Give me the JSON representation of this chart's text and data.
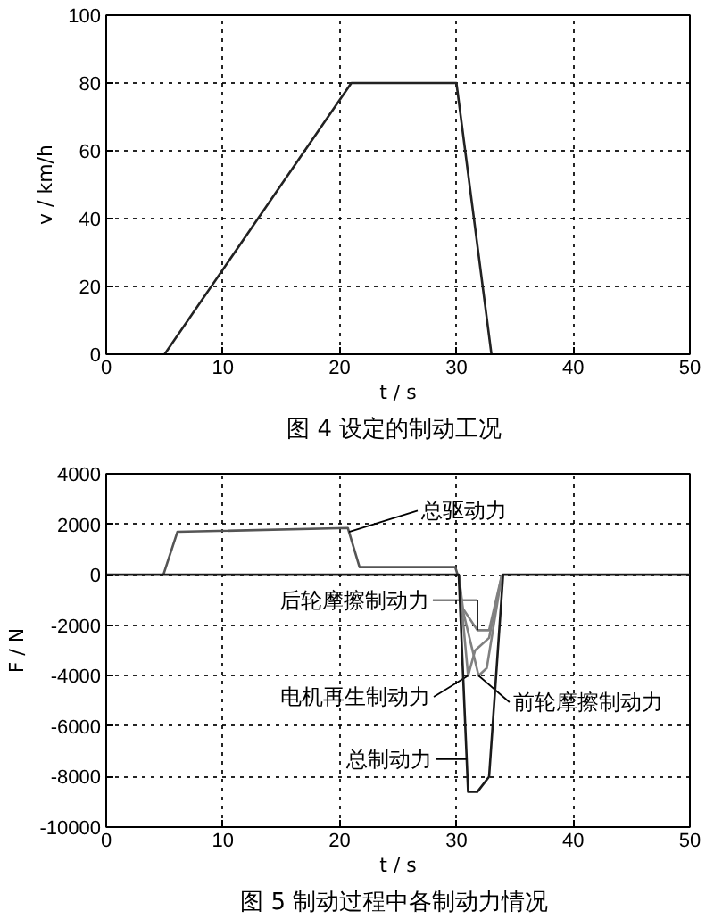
{
  "chart_data": [
    {
      "type": "line",
      "title": "图 4  设定的制动工况",
      "xlabel": "t / s",
      "ylabel": "v / km/h",
      "x": [
        5,
        21,
        30,
        33
      ],
      "values": [
        0,
        80,
        80,
        0
      ],
      "color": "#222222",
      "xlim": [
        0,
        50
      ],
      "ylim": [
        0,
        100
      ],
      "xticks": [
        0,
        10,
        20,
        30,
        40,
        50
      ],
      "yticks": [
        0,
        20,
        40,
        60,
        80,
        100
      ],
      "grid": true
    },
    {
      "type": "line",
      "title": "图 5  制动过程中各制动力情况",
      "xlabel": "t / s",
      "ylabel": "F / N",
      "xlim": [
        0,
        50
      ],
      "ylim": [
        -10000,
        4000
      ],
      "xticks": [
        0,
        10,
        20,
        30,
        40,
        50
      ],
      "yticks": [
        -10000,
        -8000,
        -6000,
        -4000,
        -2000,
        0,
        2000,
        4000
      ],
      "grid": true,
      "series": [
        {
          "name": "总驱动力",
          "color": "#555555",
          "x": [
            4.9,
            6.1,
            20.7,
            21.7,
            29.9,
            30.1
          ],
          "values": [
            0,
            1700,
            1850,
            300,
            300,
            0
          ]
        },
        {
          "name": "后轮摩擦制动力",
          "color": "#808080",
          "x": [
            30.2,
            30.5,
            31.8,
            32.8,
            33.9
          ],
          "values": [
            0,
            -1300,
            -2200,
            -2200,
            0
          ]
        },
        {
          "name": "电机再生制动力",
          "color": "#808080",
          "x": [
            30.2,
            31.0,
            31.6,
            32.8,
            33.9
          ],
          "values": [
            0,
            -4000,
            -3000,
            -2500,
            0
          ]
        },
        {
          "name": "前轮摩擦制动力",
          "color": "#808080",
          "x": [
            30.2,
            30.6,
            31.9,
            32.6,
            33.9
          ],
          "values": [
            0,
            -1500,
            -4000,
            -3700,
            0
          ]
        },
        {
          "name": "总制动力",
          "color": "#1a1a1a",
          "x": [
            0,
            30.2,
            31.0,
            31.8,
            32.8,
            34.0,
            50
          ],
          "values": [
            0,
            0,
            -8600,
            -8600,
            -8000,
            0,
            0
          ]
        }
      ]
    }
  ]
}
